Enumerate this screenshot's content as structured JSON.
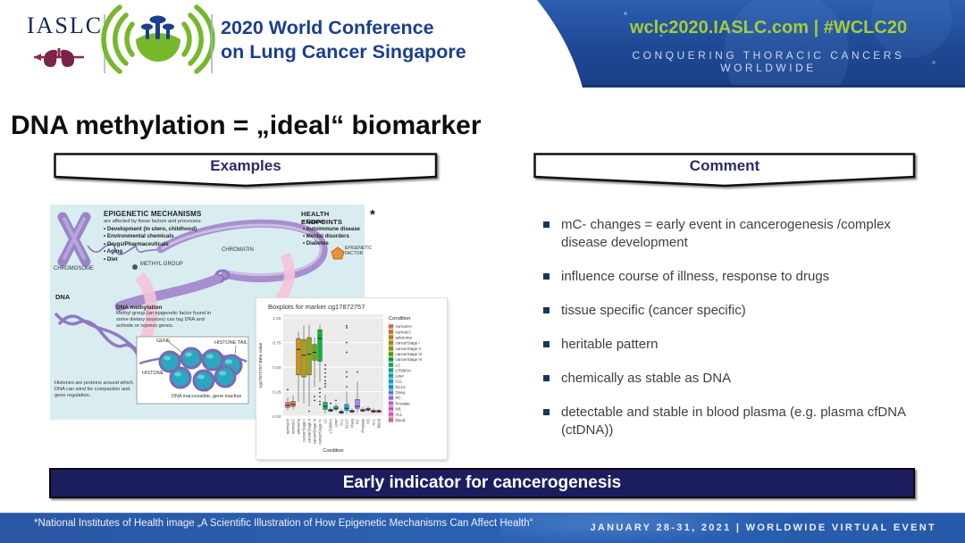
{
  "header": {
    "iaslc": "IASLC",
    "title1": "2020 World Conference",
    "title2": "on Lung Cancer Singapore",
    "website": "wclc2020.IASLC.com | #WCLC20",
    "tagline": "CONQUERING THORACIC CANCERS WORLDWIDE",
    "colors": {
      "banner_blue": "#1e4f9e",
      "link_green": "#a6cb3a",
      "title_navy": "#1b3e91"
    }
  },
  "icons": {
    "header_emblem": "lung-ribbon-icon",
    "sonar_logo": "supertree-sonar-icon",
    "epigenetic_factor": "orange-pentagon",
    "bullet": "navy-square"
  },
  "slide": {
    "title": "DNA methylation = „ideal“ biomarker",
    "examples_label": "Examples",
    "comment_label": "Comment",
    "asterisk": "*",
    "bullets": [
      "mC- changes = early event in cancerogenesis /complex disease development",
      "influence course of illness, response to drugs",
      "tissue specific (cancer specific)",
      "heritable pattern",
      "chemically as stable as DNA",
      "detectable and stable in blood plasma (e.g. plasma cfDNA (ctDNA))"
    ],
    "banner": "Early indicator for cancerogenesis"
  },
  "nih": {
    "heading_left": "EPIGENETIC MECHANISMS",
    "subheading_left": "are affected by these factors and processes:",
    "left_bullets": [
      "Development (in utero, childhood)",
      "Environmental chemicals",
      "Drugs/Pharmaceuticals",
      "Aging",
      "Diet"
    ],
    "heading_right": "HEALTH ENDPOINTS",
    "right_bullets": [
      "Cancer",
      "Autoimmune disease",
      "Mental disorders",
      "Diabetes"
    ],
    "labels": {
      "chromosome": "CHROMOSOME",
      "chromatin": "CHROMATIN",
      "methyl_group": "METHYL GROUP",
      "epigenetic_factor": "EPIGENETIC FACTOR",
      "dna": "DNA",
      "gene": "GENE",
      "histone_tail": "HISTONE TAIL",
      "histone": "HISTONE",
      "dna_inaccessible": "DNA inaccessible, gene inactive"
    },
    "methylation_title": "DNA methylation",
    "methylation_text": "Methyl group (an epigenetic factor found in some dietary sources) can tag DNA and activate or repress genes.",
    "histone_caption": "Histones are proteins around which DNA can wind for compaction and gene regulation."
  },
  "chart_data": {
    "type": "boxplot",
    "title": "Boxplots for marker cg17872757",
    "xlabel": "Condition",
    "ylabel": "cg17872757 Beta value",
    "legend_title": "Condition",
    "ylim": [
      0,
      1
    ],
    "yticks": [
      0.0,
      0.25,
      0.5,
      0.75,
      1.0
    ],
    "grid": true,
    "legend_position": "right",
    "categories": [
      "normal-H",
      "normal-C",
      "adenoma",
      "cancerStage I",
      "cancerStage II",
      "cancerStage III",
      "cancerStage IV",
      "LC",
      "LTNBFm",
      "Liver",
      "CLL",
      "SCLC",
      "Oseq",
      "PC",
      "Prostate",
      "NS",
      "ALL",
      "blood"
    ],
    "colors": [
      "#F8766D",
      "#E88526",
      "#D39200",
      "#B79F00",
      "#93AA00",
      "#5EB300",
      "#00BA38",
      "#00BF74",
      "#00C19F",
      "#00BFC4",
      "#00B9E3",
      "#00ADFA",
      "#619CFF",
      "#AE87FF",
      "#DB72FB",
      "#F564E3",
      "#FF61C3",
      "#FF6C91"
    ],
    "series": [
      {
        "name": "normal-H",
        "lo": 0.06,
        "q1": 0.09,
        "med": 0.11,
        "q3": 0.14,
        "hi": 0.19,
        "outliers": [
          0.27
        ]
      },
      {
        "name": "normal-C",
        "lo": 0.07,
        "q1": 0.1,
        "med": 0.12,
        "q3": 0.15,
        "hi": 0.21,
        "outliers": []
      },
      {
        "name": "adenoma",
        "lo": 0.15,
        "q1": 0.42,
        "med": 0.68,
        "q3": 0.79,
        "hi": 0.86,
        "outliers": []
      },
      {
        "name": "cancerStage I",
        "lo": 0.13,
        "q1": 0.4,
        "med": 0.62,
        "q3": 0.78,
        "hi": 0.92,
        "outliers": []
      },
      {
        "name": "cancerStage II",
        "lo": 0.1,
        "q1": 0.42,
        "med": 0.63,
        "q3": 0.8,
        "hi": 0.93,
        "outliers": [
          0.05
        ]
      },
      {
        "name": "cancerStage III",
        "lo": 0.3,
        "q1": 0.57,
        "med": 0.65,
        "q3": 0.73,
        "hi": 0.8,
        "outliers": [
          0.2,
          0.16
        ]
      },
      {
        "name": "cancerStage IV",
        "lo": 0.35,
        "q1": 0.56,
        "med": 0.79,
        "q3": 0.88,
        "hi": 0.93,
        "outliers": [
          0.28,
          0.24,
          0.2,
          0.15,
          0.12
        ]
      },
      {
        "name": "LC",
        "lo": 0.03,
        "q1": 0.07,
        "med": 0.1,
        "q3": 0.14,
        "hi": 0.22,
        "outliers": [
          0.3,
          0.33,
          0.36,
          0.4,
          0.44,
          0.48,
          0.52
        ]
      },
      {
        "name": "LTNBFm",
        "lo": 0.04,
        "q1": 0.05,
        "med": 0.06,
        "q3": 0.07,
        "hi": 0.09,
        "outliers": [
          0.13
        ]
      },
      {
        "name": "Liver",
        "lo": 0.05,
        "q1": 0.07,
        "med": 0.08,
        "q3": 0.1,
        "hi": 0.13,
        "outliers": [
          0.16
        ]
      },
      {
        "name": "CLL",
        "lo": 0.02,
        "q1": 0.03,
        "med": 0.04,
        "q3": 0.05,
        "hi": 0.07,
        "outliers": []
      },
      {
        "name": "SCLC",
        "lo": 0.03,
        "q1": 0.06,
        "med": 0.08,
        "q3": 0.12,
        "hi": 0.25,
        "outliers": [
          0.92,
          0.9,
          0.75,
          0.65,
          0.45,
          0.4,
          0.3
        ]
      },
      {
        "name": "Oseq",
        "lo": 0.03,
        "q1": 0.04,
        "med": 0.05,
        "q3": 0.06,
        "hi": 0.08,
        "outliers": []
      },
      {
        "name": "PC",
        "lo": 0.04,
        "q1": 0.08,
        "med": 0.1,
        "q3": 0.17,
        "hi": 0.35,
        "outliers": [
          0.45
        ]
      },
      {
        "name": "Prostate",
        "lo": 0.04,
        "q1": 0.05,
        "med": 0.06,
        "q3": 0.07,
        "hi": 0.09,
        "outliers": []
      },
      {
        "name": "NS",
        "lo": 0.04,
        "q1": 0.06,
        "med": 0.07,
        "q3": 0.08,
        "hi": 0.1,
        "outliers": []
      },
      {
        "name": "ALL",
        "lo": 0.03,
        "q1": 0.04,
        "med": 0.05,
        "q3": 0.06,
        "hi": 0.08,
        "outliers": []
      },
      {
        "name": "blood",
        "lo": 0.03,
        "q1": 0.04,
        "med": 0.05,
        "q3": 0.06,
        "hi": 0.07,
        "outliers": []
      }
    ]
  },
  "footer": {
    "citation": "*National Institutes of Health image „A Scientific Illustration of How Epigenetic Mechanisms Can Affect Health“",
    "event": "JANUARY 28-31, 2021 | WORLDWIDE VIRTUAL EVENT"
  }
}
